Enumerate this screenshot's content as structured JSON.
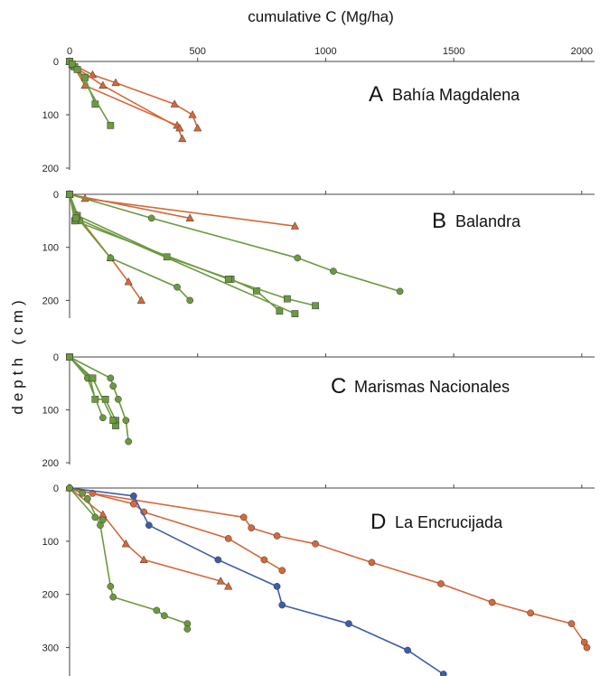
{
  "chart_data": {
    "type": "line",
    "xlabel": "cumulative C (Mg/ha)",
    "ylabel": "depth (cm)",
    "x_ticks": [
      0,
      500,
      1000,
      1500,
      2000
    ],
    "xlim": [
      0,
      2050
    ],
    "colors": {
      "orange": "#d4693a",
      "green": "#6b9a3e",
      "blue": "#3b5ea8"
    },
    "panels": [
      {
        "letter": "A",
        "name": "Bahía Magdalena",
        "ylim": [
          0,
          200
        ],
        "y_ticks": [
          0,
          100,
          200
        ],
        "series": [
          {
            "color": "orange",
            "marker": "triangle",
            "points": [
              [
                0,
                0
              ],
              [
                10,
                5
              ],
              [
                90,
                25
              ],
              [
                180,
                40
              ],
              [
                410,
                80
              ],
              [
                480,
                100
              ],
              [
                500,
                125
              ]
            ]
          },
          {
            "color": "orange",
            "marker": "triangle",
            "points": [
              [
                0,
                0
              ],
              [
                15,
                8
              ],
              [
                60,
                45
              ],
              [
                420,
                120
              ],
              [
                440,
                145
              ]
            ]
          },
          {
            "color": "orange",
            "marker": "triangle",
            "points": [
              [
                0,
                0
              ],
              [
                20,
                10
              ],
              [
                130,
                45
              ],
              [
                430,
                125
              ]
            ]
          },
          {
            "color": "green",
            "marker": "square",
            "points": [
              [
                0,
                0
              ],
              [
                20,
                10
              ],
              [
                60,
                30
              ],
              [
                100,
                80
              ]
            ]
          },
          {
            "color": "green",
            "marker": "square",
            "points": [
              [
                0,
                0
              ],
              [
                10,
                5
              ],
              [
                30,
                15
              ],
              [
                160,
                120
              ]
            ]
          }
        ]
      },
      {
        "letter": "B",
        "name": "Balandra",
        "ylim": [
          0,
          230
        ],
        "y_ticks": [
          0,
          100,
          200
        ],
        "series": [
          {
            "color": "orange",
            "marker": "triangle",
            "points": [
              [
                0,
                0
              ],
              [
                60,
                8
              ],
              [
                880,
                60
              ]
            ]
          },
          {
            "color": "orange",
            "marker": "triangle",
            "points": [
              [
                0,
                0
              ],
              [
                470,
                45
              ]
            ]
          },
          {
            "color": "orange",
            "marker": "triangle",
            "points": [
              [
                0,
                0
              ],
              [
                30,
                40
              ],
              [
                160,
                120
              ],
              [
                230,
                165
              ],
              [
                280,
                200
              ]
            ]
          },
          {
            "color": "green",
            "marker": "circle",
            "points": [
              [
                0,
                0
              ],
              [
                320,
                45
              ],
              [
                890,
                120
              ],
              [
                1030,
                145
              ],
              [
                1290,
                183
              ]
            ]
          },
          {
            "color": "green",
            "marker": "circle",
            "points": [
              [
                0,
                0
              ],
              [
                40,
                50
              ],
              [
                160,
                120
              ],
              [
                420,
                175
              ],
              [
                470,
                200
              ]
            ]
          },
          {
            "color": "green",
            "marker": "square",
            "points": [
              [
                0,
                0
              ],
              [
                30,
                40
              ],
              [
                380,
                118
              ],
              [
                630,
                160
              ],
              [
                730,
                182
              ],
              [
                820,
                220
              ]
            ]
          },
          {
            "color": "green",
            "marker": "square",
            "points": [
              [
                0,
                0
              ],
              [
                20,
                50
              ],
              [
                620,
                160
              ],
              [
                850,
                197
              ],
              [
                960,
                210
              ]
            ]
          },
          {
            "color": "green",
            "marker": "square",
            "points": [
              [
                0,
                0
              ],
              [
                25,
                45
              ],
              [
                880,
                225
              ]
            ]
          }
        ]
      },
      {
        "letter": "C",
        "name": "Marismas Nacionales",
        "ylim": [
          0,
          200
        ],
        "y_ticks": [
          0,
          100,
          200
        ],
        "series": [
          {
            "color": "green",
            "marker": "square",
            "points": [
              [
                0,
                0
              ],
              [
                80,
                40
              ],
              [
                100,
                80
              ],
              [
                140,
                80
              ],
              [
                180,
                120
              ],
              [
                180,
                130
              ]
            ]
          },
          {
            "color": "green",
            "marker": "circle",
            "points": [
              [
                0,
                0
              ],
              [
                160,
                40
              ],
              [
                170,
                55
              ],
              [
                190,
                80
              ],
              [
                220,
                120
              ],
              [
                230,
                160
              ]
            ]
          },
          {
            "color": "green",
            "marker": "circle",
            "points": [
              [
                0,
                0
              ],
              [
                70,
                40
              ],
              [
                130,
                115
              ]
            ]
          },
          {
            "color": "green",
            "marker": "square",
            "points": [
              [
                0,
                0
              ],
              [
                90,
                40
              ],
              [
                170,
                120
              ]
            ]
          }
        ]
      },
      {
        "letter": "D",
        "name": "La Encrucijada",
        "ylim": [
          0,
          350
        ],
        "y_ticks": [
          0,
          100,
          200,
          300
        ],
        "series": [
          {
            "color": "orange",
            "marker": "circle",
            "points": [
              [
                0,
                0
              ],
              [
                90,
                10
              ],
              [
                680,
                55
              ],
              [
                710,
                75
              ],
              [
                810,
                90
              ],
              [
                960,
                105
              ],
              [
                1180,
                140
              ],
              [
                1450,
                180
              ],
              [
                1650,
                215
              ],
              [
                1800,
                235
              ],
              [
                1960,
                255
              ],
              [
                2010,
                290
              ],
              [
                2020,
                300
              ]
            ]
          },
          {
            "color": "orange",
            "marker": "circle",
            "points": [
              [
                0,
                0
              ],
              [
                250,
                30
              ],
              [
                290,
                45
              ],
              [
                620,
                95
              ],
              [
                760,
                135
              ],
              [
                830,
                155
              ]
            ]
          },
          {
            "color": "orange",
            "marker": "triangle",
            "points": [
              [
                0,
                0
              ],
              [
                130,
                50
              ],
              [
                220,
                105
              ],
              [
                290,
                135
              ],
              [
                590,
                175
              ],
              [
                620,
                185
              ]
            ]
          },
          {
            "color": "blue",
            "marker": "circle",
            "points": [
              [
                0,
                0
              ],
              [
                250,
                15
              ],
              [
                310,
                70
              ],
              [
                580,
                135
              ],
              [
                810,
                185
              ],
              [
                830,
                220
              ],
              [
                1090,
                255
              ],
              [
                1320,
                305
              ],
              [
                1460,
                350
              ]
            ]
          },
          {
            "color": "green",
            "marker": "circle",
            "points": [
              [
                0,
                0
              ],
              [
                50,
                10
              ],
              [
                70,
                20
              ],
              [
                120,
                70
              ],
              [
                160,
                185
              ],
              [
                170,
                205
              ],
              [
                340,
                230
              ],
              [
                370,
                240
              ],
              [
                460,
                255
              ],
              [
                460,
                265
              ]
            ]
          },
          {
            "color": "green",
            "marker": "circle",
            "points": [
              [
                0,
                0
              ],
              [
                100,
                55
              ],
              [
                130,
                60
              ]
            ]
          }
        ]
      }
    ]
  }
}
